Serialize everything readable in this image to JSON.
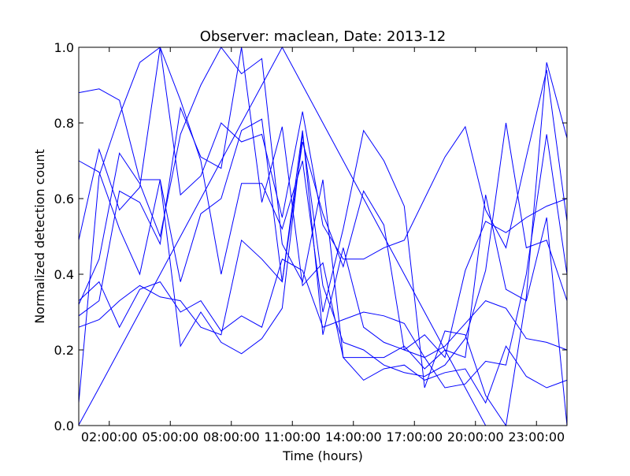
{
  "chart_data": {
    "type": "line",
    "title": "Observer: maclean, Date: 2013-12",
    "xlabel": "Time (hours)",
    "ylabel": "Normalized detection count",
    "xlim": [
      "00:30:00",
      "24:30:00"
    ],
    "ylim": [
      0.0,
      1.0
    ],
    "x_ticks": [
      "02:00:00",
      "05:00:00",
      "08:00:00",
      "11:00:00",
      "14:00:00",
      "17:00:00",
      "20:00:00",
      "23:00:00"
    ],
    "y_ticks": [
      "0.0",
      "0.2",
      "0.4",
      "0.6",
      "0.8",
      "1.0"
    ],
    "line_color": "#0000ff",
    "grid": false,
    "legend": "none",
    "series": [
      {
        "x": [
          "00:30",
          "01:30",
          "02:30",
          "03:30",
          "04:30",
          "05:30",
          "06:30",
          "07:30",
          "08:30",
          "09:30",
          "10:30",
          "11:30",
          "12:30",
          "13:30",
          "14:30",
          "15:30",
          "16:30",
          "17:30",
          "18:30",
          "19:30",
          "20:30",
          "21:30",
          "22:30",
          "23:30",
          "24:30"
        ],
        "values": [
          0.88,
          0.89,
          0.86,
          0.65,
          0.65,
          0.21,
          0.3,
          0.22,
          0.19,
          0.23,
          0.31,
          0.77,
          0.37,
          0.22,
          0.2,
          0.16,
          0.14,
          0.13,
          0.16,
          0.23,
          0.41,
          0.8,
          0.47,
          0.49,
          0.33
        ]
      },
      {
        "x": [
          "00:30",
          "01:30",
          "02:30",
          "03:30",
          "04:30",
          "05:30",
          "06:30",
          "07:30",
          "08:30",
          "09:30",
          "10:30",
          "11:30",
          "12:30",
          "13:30",
          "14:30",
          "15:30",
          "16:30",
          "17:30",
          "18:30",
          "19:30",
          "20:30",
          "21:30",
          "22:30",
          "23:30",
          "24:30"
        ],
        "values": [
          0.33,
          0.38,
          0.26,
          0.36,
          0.38,
          0.3,
          0.33,
          0.25,
          0.29,
          0.26,
          0.44,
          0.41,
          0.26,
          0.28,
          0.3,
          0.29,
          0.27,
          0.18,
          0.21,
          0.27,
          0.33,
          0.31,
          0.23,
          0.22,
          0.2
        ]
      },
      {
        "x": [
          "00:30",
          "01:30",
          "02:30",
          "03:30",
          "04:30",
          "05:30",
          "06:30",
          "07:30",
          "08:30",
          "09:30",
          "10:30",
          "11:30",
          "12:30",
          "13:30",
          "14:30",
          "15:30",
          "16:30",
          "17:30",
          "18:30",
          "19:30",
          "20:30",
          "21:30",
          "22:30",
          "23:30",
          "24:30"
        ],
        "values": [
          0.49,
          0.73,
          0.57,
          0.63,
          1.0,
          0.61,
          0.66,
          0.8,
          0.75,
          0.77,
          0.55,
          0.83,
          0.53,
          0.44,
          0.44,
          0.47,
          0.49,
          0.6,
          0.71,
          0.79,
          0.57,
          0.47,
          0.71,
          0.94,
          0.54
        ]
      },
      {
        "x": [
          "00:30",
          "01:30",
          "02:30",
          "03:30",
          "04:30",
          "05:30",
          "06:30",
          "07:30",
          "08:30",
          "09:30",
          "10:30",
          "11:30",
          "12:30",
          "13:30",
          "14:30",
          "15:30",
          "16:30",
          "17:30",
          "18:30",
          "19:30",
          "20:30",
          "21:30",
          "22:30",
          "23:30",
          "24:30"
        ],
        "values": [
          0.29,
          0.33,
          0.62,
          0.59,
          0.48,
          0.84,
          0.71,
          0.68,
          1.0,
          0.59,
          0.79,
          0.37,
          0.43,
          0.18,
          0.12,
          0.15,
          0.16,
          0.12,
          0.14,
          0.15,
          0.06,
          0.21,
          0.13,
          0.1,
          0.12
        ]
      },
      {
        "x": [
          "00:30",
          "01:30",
          "02:30",
          "03:30",
          "04:30",
          "05:30",
          "06:30",
          "07:30",
          "08:30",
          "09:30",
          "10:30",
          "11:30",
          "12:30",
          "13:30",
          "14:30",
          "15:30",
          "16:30",
          "17:30",
          "18:30",
          "19:30",
          "20:30",
          "21:30",
          "22:30",
          "23:30",
          "24:30"
        ],
        "values": [
          0.06,
          0.66,
          0.82,
          0.96,
          1.0,
          0.86,
          0.7,
          0.4,
          0.64,
          0.64,
          0.52,
          0.7,
          0.3,
          0.52,
          0.78,
          0.7,
          0.58,
          0.1,
          0.25,
          0.24,
          0.08,
          0.0,
          0.34,
          0.96,
          0.76
        ]
      },
      {
        "x": [
          "00:30",
          "01:30",
          "02:30",
          "03:30",
          "04:30",
          "05:30",
          "06:30",
          "07:30",
          "08:30",
          "09:30",
          "10:30",
          "11:30",
          "12:30",
          "13:30",
          "14:30",
          "15:30",
          "16:30",
          "17:30",
          "18:30",
          "19:30",
          "20:30",
          "21:30",
          "22:30",
          "23:30",
          "24:30"
        ],
        "values": [
          0.7,
          0.67,
          0.52,
          0.4,
          0.65,
          0.38,
          0.56,
          0.6,
          0.78,
          0.81,
          0.38,
          0.75,
          0.56,
          0.42,
          0.62,
          0.53,
          0.2,
          0.18,
          0.1,
          0.11,
          0.17,
          0.16,
          0.4,
          0.77,
          0.4
        ]
      },
      {
        "x": [
          "00:30",
          "01:30",
          "02:30",
          "03:30",
          "04:30",
          "05:30",
          "06:30",
          "07:30",
          "08:30",
          "09:30",
          "10:30",
          "11:30",
          "12:30",
          "13:30",
          "14:30",
          "15:30",
          "16:30",
          "17:30",
          "18:30",
          "19:30",
          "20:30",
          "21:30",
          "22:30",
          "23:30",
          "24:30"
        ],
        "values": [
          0.26,
          0.28,
          0.33,
          0.37,
          0.34,
          0.33,
          0.26,
          0.24,
          0.49,
          0.44,
          0.38,
          0.78,
          0.24,
          0.47,
          0.26,
          0.22,
          0.2,
          0.24,
          0.18,
          0.41,
          0.54,
          0.51,
          0.55,
          0.58,
          0.6
        ]
      },
      {
        "x": [
          "00:30",
          "01:30",
          "02:30",
          "03:30",
          "04:30",
          "05:30",
          "06:30",
          "07:30",
          "08:30",
          "09:30",
          "10:30",
          "11:30",
          "12:30",
          "13:30",
          "14:30",
          "15:30",
          "16:30",
          "17:30",
          "18:30",
          "19:30",
          "20:30",
          "21:30",
          "22:30",
          "23:30",
          "24:30"
        ],
        "values": [
          0.32,
          0.44,
          0.72,
          0.64,
          0.5,
          0.77,
          0.9,
          1.0,
          0.93,
          0.97,
          0.48,
          0.38,
          0.65,
          0.18,
          0.18,
          0.18,
          0.21,
          0.15,
          0.2,
          0.18,
          0.61,
          0.36,
          0.33,
          0.55,
          0.0
        ]
      },
      {
        "x": [
          "00:30",
          "01:30",
          "02:30",
          "03:30",
          "04:30",
          "05:30",
          "06:30",
          "07:30",
          "08:30",
          "09:30",
          "10:30",
          "11:30",
          "12:30",
          "13:30",
          "14:30",
          "15:30",
          "16:30",
          "17:30",
          "18:30",
          "19:30",
          "20:30",
          "21:30",
          "22:30",
          "23:30",
          "24:30"
        ],
        "values": [
          0.0015,
          0.1,
          0.2,
          0.3,
          0.4,
          0.5,
          0.6,
          0.7,
          0.8,
          0.9,
          1.0,
          0.9,
          0.8,
          0.7,
          0.6,
          0.5,
          0.4,
          0.3,
          0.2,
          0.1,
          0.0,
          0.0,
          0.0,
          0.0,
          0.0
        ]
      }
    ]
  }
}
